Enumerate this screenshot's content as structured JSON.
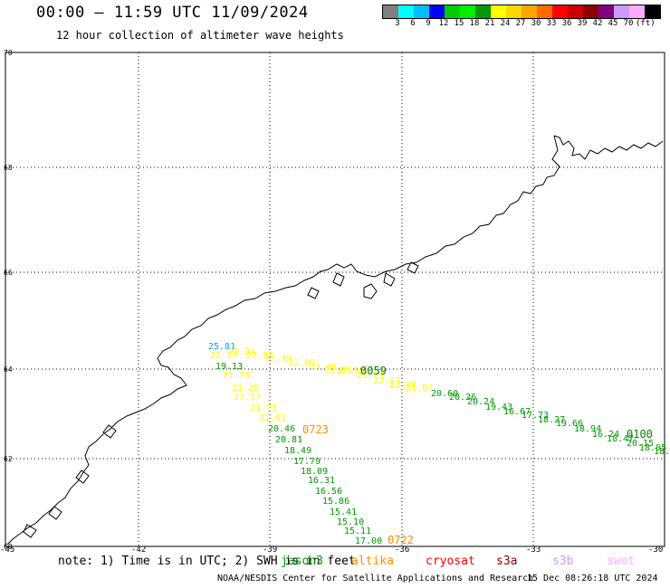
{
  "header": {
    "title": "00:00 – 11:59 UTC 11/09/2024",
    "subtitle": "12 hour collection of altimeter wave heights"
  },
  "colorbar": {
    "colors": [
      "#808080",
      "#00ffff",
      "#00bfff",
      "#0000ff",
      "#00cc00",
      "#00ee00",
      "#009900",
      "#ffff00",
      "#ffd700",
      "#ffa500",
      "#ff6a00",
      "#ff0000",
      "#cc0000",
      "#8b0000",
      "#800080",
      "#cc99ff",
      "#ffaaff",
      "#000000"
    ],
    "labels": [
      "3",
      "6",
      "9",
      "12",
      "15",
      "18",
      "21",
      "24",
      "27",
      "30",
      "33",
      "36",
      "39",
      "42",
      "45",
      "70",
      "(ft)"
    ]
  },
  "axes": {
    "lat_labels": [
      "70",
      "68",
      "66",
      "64",
      "62",
      "60"
    ],
    "lon_labels": [
      "-45",
      "-42",
      "-39",
      "-36",
      "-33",
      "-30"
    ]
  },
  "tracks": [
    {
      "time": "0059",
      "color": "#008000",
      "points": [
        {
          "v": "25.81",
          "c": "#00aaff"
        },
        {
          "v": "23.24",
          "c": "#ffff00"
        },
        {
          "v": "23.85",
          "c": "#ffff00"
        },
        {
          "v": "22.38",
          "c": "#ffff00"
        },
        {
          "v": "22.00",
          "c": "#ffff00"
        },
        {
          "v": "21.48",
          "c": "#ffff00"
        },
        {
          "v": "22.05",
          "c": "#ffff00"
        },
        {
          "v": "22.58",
          "c": "#ffff00"
        },
        {
          "v": "22.25",
          "c": "#ffff00"
        },
        {
          "v": "22.27",
          "c": "#ffff00"
        },
        {
          "v": "22.08",
          "c": "#ffff00"
        },
        {
          "v": "21.87",
          "c": "#ffff00"
        },
        {
          "v": "20.60",
          "c": "#009900"
        },
        {
          "v": "20.26",
          "c": "#009900"
        },
        {
          "v": "20.24",
          "c": "#009900"
        },
        {
          "v": "19.43",
          "c": "#009900"
        },
        {
          "v": "16.67",
          "c": "#009900"
        },
        {
          "v": "17.73",
          "c": "#009900"
        },
        {
          "v": "18.27",
          "c": "#009900"
        },
        {
          "v": "19.66",
          "c": "#009900"
        },
        {
          "v": "18.94",
          "c": "#009900"
        },
        {
          "v": "16.24",
          "c": "#009900"
        },
        {
          "v": "18.47",
          "c": "#009900"
        }
      ]
    },
    {
      "time": "0100",
      "color": "#008000",
      "points": [
        {
          "v": "20.15",
          "c": "#009900"
        },
        {
          "v": "18.05",
          "c": "#009900"
        },
        {
          "v": "18.",
          "c": "#009900"
        }
      ]
    },
    {
      "time": "0723",
      "color": "#ff8c00",
      "points": [
        {
          "v": "22.17",
          "c": "#ffff00"
        },
        {
          "v": "19.13",
          "c": "#009900"
        },
        {
          "v": "21.75",
          "c": "#ffff00"
        },
        {
          "v": "21.28",
          "c": "#ffff00"
        },
        {
          "v": "21.17",
          "c": "#ffff00"
        },
        {
          "v": "21.75",
          "c": "#ffff00"
        },
        {
          "v": "21.81",
          "c": "#ffff00"
        },
        {
          "v": "20.46",
          "c": "#009900"
        },
        {
          "v": "20.81",
          "c": "#009900"
        },
        {
          "v": "18.49",
          "c": "#009900"
        },
        {
          "v": "17.79",
          "c": "#009900"
        },
        {
          "v": "18.09",
          "c": "#009900"
        },
        {
          "v": "16.31",
          "c": "#009900"
        },
        {
          "v": "16.56",
          "c": "#009900"
        },
        {
          "v": "15.86",
          "c": "#009900"
        },
        {
          "v": "15.41",
          "c": "#009900"
        },
        {
          "v": "15.10",
          "c": "#009900"
        },
        {
          "v": "15.11",
          "c": "#009900"
        },
        {
          "v": "17.00",
          "c": "#009900"
        }
      ]
    },
    {
      "time": "0722",
      "color": "#ff8c00",
      "points": []
    }
  ],
  "note": "note: 1) Time is in UTC; 2) SWH is in feet",
  "satellites": [
    {
      "name": "jason3",
      "color": "#009900"
    },
    {
      "name": "altika",
      "color": "#ff8c00"
    },
    {
      "name": "cryosat",
      "color": "#ff0000"
    },
    {
      "name": "s3a",
      "color": "#8b0000"
    },
    {
      "name": "s3b",
      "color": "#cc99ff"
    },
    {
      "name": "swot",
      "color": "#ffaaff"
    }
  ],
  "footer": {
    "credit": "NOAA/NESDIS Center for Satellite Applications and Research",
    "timestamp": "15 Dec 08:26:18 UTC 2024"
  }
}
